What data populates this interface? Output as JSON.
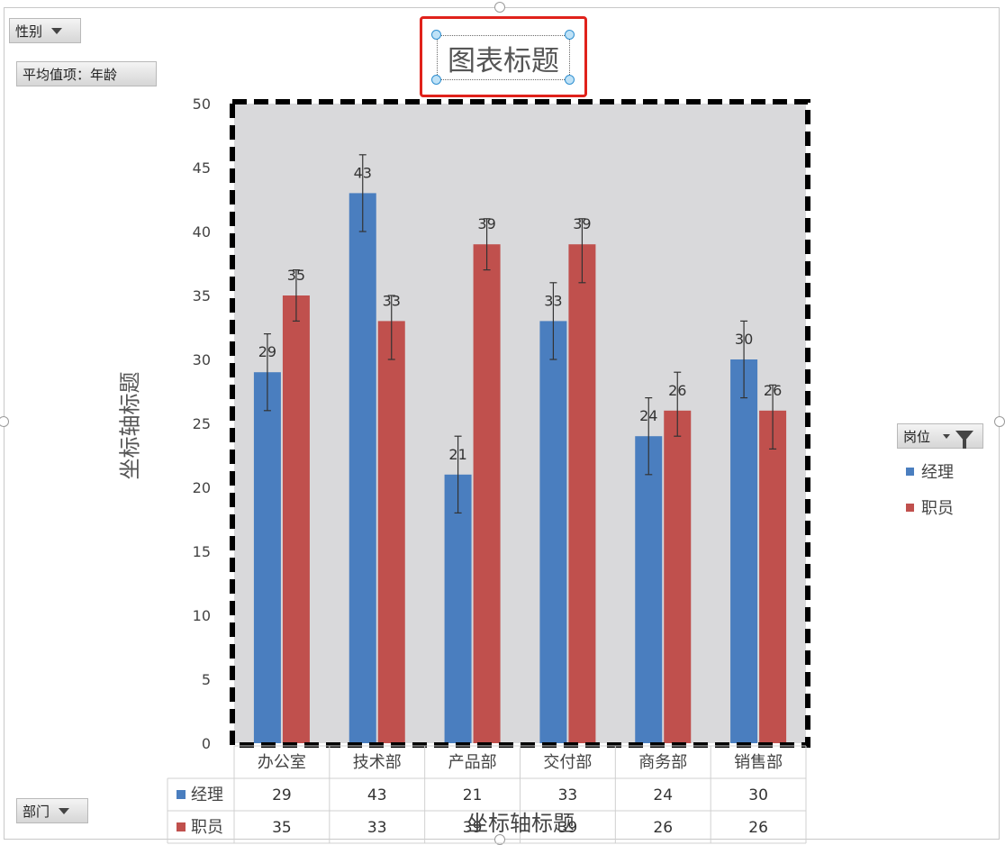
{
  "field_buttons": {
    "gender": "性别",
    "avg_value": "平均值项：年龄",
    "department": "部门",
    "position": "岗位"
  },
  "chart_title": "图表标题",
  "axis_titles": {
    "y": "坐标轴标题",
    "x": "坐标轴标题"
  },
  "colors": {
    "manager": "#4a7ebf",
    "staff": "#c0504d",
    "plot_bg": "#d9d9db",
    "title_highlight": "#e0221b"
  },
  "icons": [
    "dropdown-arrow-icon",
    "filter-icon"
  ],
  "chart_data": {
    "type": "bar",
    "title": "图表标题",
    "xlabel": "坐标轴标题",
    "ylabel": "坐标轴标题",
    "ylim": [
      0,
      50
    ],
    "yticks": [
      0,
      5,
      10,
      15,
      20,
      25,
      30,
      35,
      40,
      45,
      50
    ],
    "categories": [
      "办公室",
      "技术部",
      "产品部",
      "交付部",
      "商务部",
      "销售部"
    ],
    "series": [
      {
        "name": "经理",
        "values": [
          29,
          43,
          21,
          33,
          24,
          30
        ],
        "error_low": [
          26,
          40,
          18,
          30,
          21,
          27
        ],
        "error_high": [
          32,
          46,
          24,
          36,
          27,
          33
        ]
      },
      {
        "name": "职员",
        "values": [
          35,
          33,
          39,
          39,
          26,
          26
        ],
        "error_low": [
          33,
          30,
          37,
          36,
          24,
          23
        ],
        "error_high": [
          37,
          35,
          41,
          41,
          29,
          28
        ]
      }
    ],
    "data_labels": [
      [
        "29",
        "43",
        "21",
        "33",
        "24",
        "30"
      ],
      [
        "35",
        "33",
        "39",
        "39",
        "26",
        "26"
      ]
    ],
    "legend_position": "right",
    "data_table": true,
    "grid": false
  }
}
